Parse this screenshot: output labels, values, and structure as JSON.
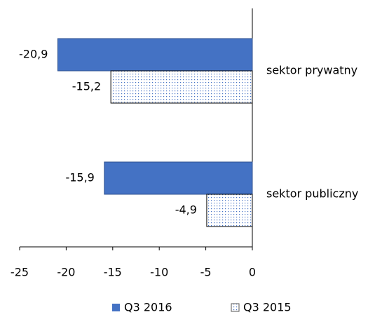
{
  "chart_data": {
    "type": "hbar",
    "categories": [
      "sektor prywatny",
      "sektor publiczny"
    ],
    "series": [
      {
        "name": "Q3 2016",
        "color": "#4472c4",
        "values": [
          -20.9,
          -15.9
        ],
        "value_labels": [
          "-20,9",
          "-15,9"
        ]
      },
      {
        "name": "Q3 2015",
        "color": "#4472c4",
        "pattern": "dots",
        "values": [
          -15.2,
          -4.9
        ],
        "value_labels": [
          "-15,2",
          "-4,9"
        ]
      }
    ],
    "xlim": [
      -25,
      0
    ],
    "xticks": [
      -25,
      -20,
      -15,
      -10,
      -5,
      0
    ],
    "legend": "bottom"
  }
}
